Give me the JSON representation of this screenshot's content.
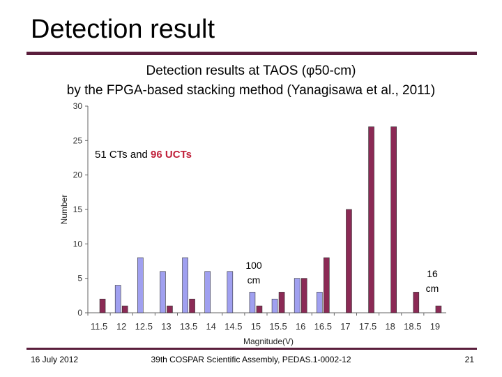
{
  "slide": {
    "title": "Detection result",
    "caption_line1": "Detection results at TAOS (φ50-cm)",
    "caption_line2": "by the FPGA-based stacking method (Yanagisawa et al., 2011)"
  },
  "footer": {
    "date": "16 July 2012",
    "event": "39th COSPAR Scientific Assembly, PEDAS.1-0002-12",
    "page": "21"
  },
  "colors": {
    "series_100cm": "#a0a0f0",
    "series_16cm": "#8b2a55",
    "accent_text": "#c0203a",
    "rule": "#5a1e3c"
  },
  "chart_data": {
    "type": "bar",
    "xlabel": "Magnitude(V)",
    "ylabel": "Number",
    "ylim": [
      0,
      30
    ],
    "yticks": [
      "0",
      "5",
      "10",
      "15",
      "20",
      "25",
      "30"
    ],
    "categories": [
      "11.5",
      "12",
      "12.5",
      "13",
      "13.5",
      "14",
      "14.5",
      "15",
      "15.5",
      "16",
      "16.5",
      "17",
      "17.5",
      "18",
      "18.5",
      "19"
    ],
    "grid": false,
    "series": [
      {
        "key": "100",
        "values": [
          0,
          4,
          8,
          6,
          8,
          6,
          6,
          3,
          2,
          5,
          3,
          0,
          0,
          0,
          0,
          0
        ]
      },
      {
        "key": "16",
        "values": [
          2,
          1,
          0,
          1,
          2,
          0,
          0,
          1,
          3,
          5,
          8,
          15,
          27,
          27,
          3,
          1
        ]
      }
    ],
    "annotations": {
      "count_prefix": "51 CTs and ",
      "count_highlight": "96 UCTs",
      "label_100_num": "100",
      "label_100_unit": "cm",
      "label_16_num": "16",
      "label_16_unit": "cm"
    }
  }
}
